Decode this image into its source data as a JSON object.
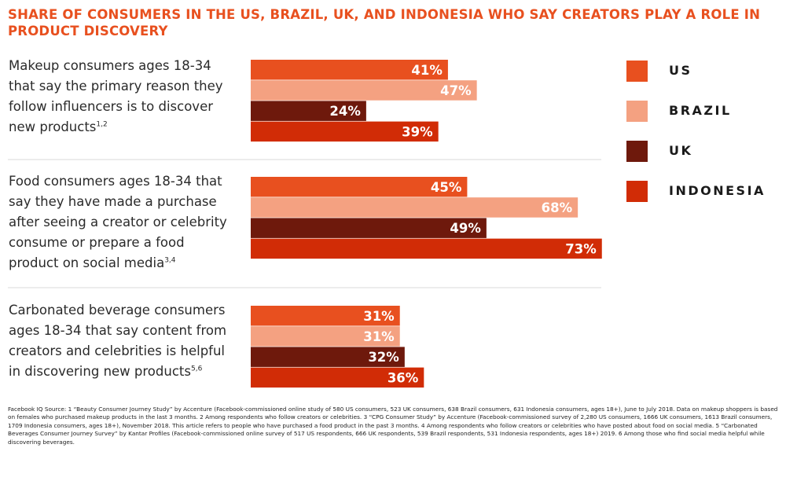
{
  "title": "SHARE OF CONSUMERS IN THE US, BRAZIL, UK, AND INDONESIA WHO SAY CREATORS PLAY A ROLE IN PRODUCT DISCOVERY",
  "colors": {
    "title": "#e8501f",
    "divider": "#d8d8d8",
    "bar_label": "#ffffff"
  },
  "chart_data": {
    "type": "bar",
    "orientation": "horizontal",
    "title": "SHARE OF CONSUMERS IN THE US, BRAZIL, UK, AND INDONESIA WHO SAY CREATORS PLAY A ROLE IN PRODUCT DISCOVERY",
    "value_suffix": "%",
    "xlim": [
      0,
      100
    ],
    "grid": false,
    "legend_position": "right",
    "categories": [
      {
        "text": "Makeup consumers ages 18-34 that say the primary reason they follow influencers is to discover new products",
        "sup": "1,2"
      },
      {
        "text": "Food consumers ages 18-34 that say they have made a purchase after seeing a creator or celebrity consume or prepare a food product on social media",
        "sup": "3,4"
      },
      {
        "text": "Carbonated beverage consumers ages 18-34 that say content from creators and celebrities is helpful in discovering new products",
        "sup": "5,6"
      }
    ],
    "series": [
      {
        "name": "US",
        "color": "#e8501f",
        "values": [
          41,
          45,
          31
        ]
      },
      {
        "name": "BRAZIL",
        "color": "#f4a181",
        "values": [
          47,
          68,
          31
        ]
      },
      {
        "name": "UK",
        "color": "#6e190c",
        "values": [
          24,
          49,
          32
        ]
      },
      {
        "name": "INDONESIA",
        "color": "#d12c06",
        "values": [
          39,
          73,
          36
        ]
      }
    ]
  },
  "footnote": "Facebook IQ Source: 1 “Beauty Consumer Journey Study” by Accenture (Facebook-commissioned online study of 580 US consumers, 523 UK consumers, 638 Brazil consumers, 631 Indonesia consumers, ages 18+), June to July 2018. Data on makeup shoppers is based on females who purchased makeup products in the last 3 months. 2 Among respondents who follow creators or celebrities. 3 “CPG Consumer Study” by Accenture (Facebook-commissioned survey of 2,280 US consumers, 1666 UK consumers, 1613 Brazil consumers, 1709 Indonesia consumers, ages 18+), November 2018. This article refers to people who have purchased a food product in the past 3 months. 4 Among respondents who follow creators or celebrities who have posted about food on social media. 5 “Carbonated Beverages Consumer Journey Survey” by Kantar Profiles (Facebook-commissioned online survey of 517 US respondents, 666 UK respondents, 539 Brazil respondents, 531 Indonesia respondents, ages 18+) 2019. 6 Among those who find social media helpful while discovering beverages."
}
